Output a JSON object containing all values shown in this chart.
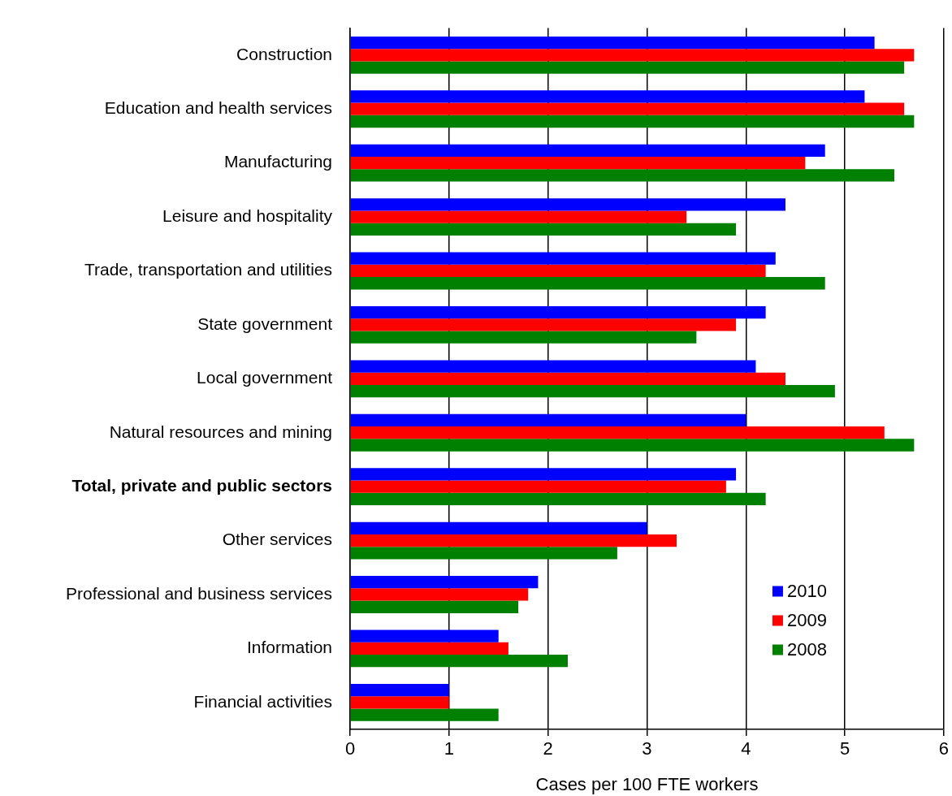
{
  "chart_data": {
    "type": "bar",
    "orientation": "horizontal",
    "categories": [
      "Construction",
      "Education and health services",
      "Manufacturing",
      "Leisure and hospitality",
      "Trade, transportation and utilities",
      "State government",
      "Local government",
      "Natural resources and mining",
      "Total, private and public sectors",
      "Other services",
      "Professional and business services",
      "Information",
      "Financial activities"
    ],
    "series": [
      {
        "name": "2010",
        "color": "#0000ff",
        "values": [
          5.3,
          5.2,
          4.8,
          4.4,
          4.3,
          4.2,
          4.1,
          4.0,
          3.9,
          3.0,
          1.9,
          1.5,
          1.0
        ]
      },
      {
        "name": "2009",
        "color": "#ff0000",
        "values": [
          5.7,
          5.6,
          4.6,
          3.4,
          4.2,
          3.9,
          4.4,
          5.4,
          3.8,
          3.3,
          1.8,
          1.6,
          1.0
        ]
      },
      {
        "name": "2008",
        "color": "#008000",
        "values": [
          5.6,
          5.7,
          5.5,
          3.9,
          4.8,
          3.5,
          4.9,
          5.7,
          4.2,
          2.7,
          1.7,
          2.2,
          1.5
        ]
      }
    ],
    "xlabel": "Cases per 100 FTE workers",
    "xlim": [
      0,
      6
    ],
    "xticks": [
      0,
      1,
      2,
      3,
      4,
      5,
      6
    ],
    "grid": "x",
    "legend": "bottom right"
  }
}
